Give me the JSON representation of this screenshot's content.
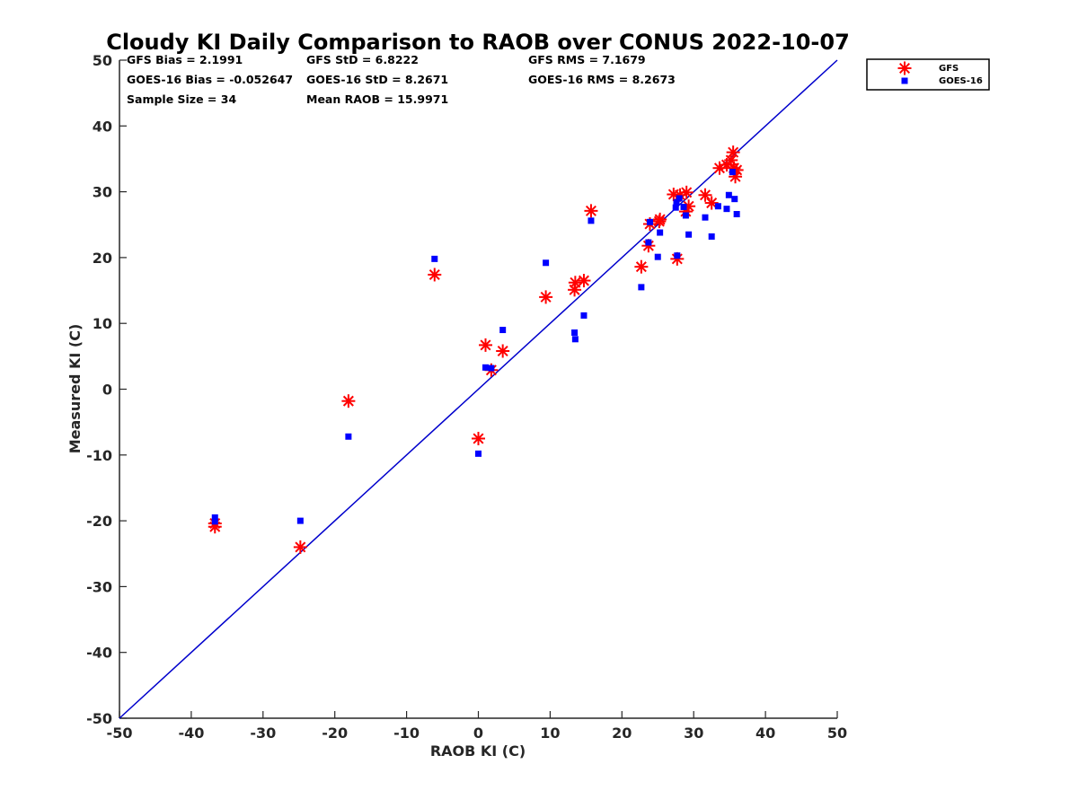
{
  "chart_data": {
    "type": "scatter",
    "title": "Cloudy KI Daily Comparison to RAOB over CONUS 2022-10-07",
    "xlabel": "RAOB KI (C)",
    "ylabel": "Measured KI (C)",
    "xlim": [
      -50,
      50
    ],
    "ylim": [
      -50,
      50
    ],
    "xticks": [
      -50,
      -40,
      -30,
      -20,
      -10,
      0,
      10,
      20,
      30,
      40,
      50
    ],
    "yticks": [
      -50,
      -40,
      -30,
      -20,
      -10,
      0,
      10,
      20,
      30,
      40,
      50
    ],
    "xtick_labels": [
      "-50",
      "-40",
      "-30",
      "-20",
      "-10",
      "0",
      "10",
      "20",
      "30",
      "40",
      "50"
    ],
    "ytick_labels": [
      "-50",
      "-40",
      "-30",
      "-20",
      "-10",
      "0",
      "10",
      "20",
      "30",
      "40",
      "50"
    ],
    "grid": false,
    "legend_position": "outside-top-right",
    "reference_line": {
      "type": "one-to-one",
      "color": "#0000cc"
    },
    "stats": [
      "GFS Bias = 2.1991",
      "GFS StD = 6.8222",
      "GFS RMS = 7.1679",
      "GOES-16 Bias = -0.052647",
      "GOES-16 StD = 8.2671",
      "GOES-16 RMS = 8.2673",
      "Sample Size = 34",
      "Mean RAOB = 15.9971"
    ],
    "series": [
      {
        "name": "GFS",
        "marker": "asterisk",
        "color": "#ff0000",
        "points": [
          [
            -36.7,
            -20.4
          ],
          [
            -36.7,
            -20.9
          ],
          [
            -24.8,
            -24.0
          ],
          [
            -18.1,
            -1.8
          ],
          [
            -6.1,
            17.4
          ],
          [
            0.0,
            -7.5
          ],
          [
            1.0,
            6.7
          ],
          [
            1.8,
            2.9
          ],
          [
            3.4,
            5.8
          ],
          [
            9.4,
            14.0
          ],
          [
            13.4,
            15.1
          ],
          [
            13.5,
            16.2
          ],
          [
            14.7,
            16.5
          ],
          [
            15.7,
            27.1
          ],
          [
            22.7,
            18.6
          ],
          [
            23.7,
            21.8
          ],
          [
            23.9,
            25.1
          ],
          [
            25.3,
            25.8
          ],
          [
            25.2,
            25.5
          ],
          [
            27.2,
            29.6
          ],
          [
            27.7,
            19.8
          ],
          [
            28.1,
            29.5
          ],
          [
            29.0,
            29.9
          ],
          [
            28.9,
            27.0
          ],
          [
            29.3,
            27.8
          ],
          [
            31.6,
            29.5
          ],
          [
            32.5,
            28.3
          ],
          [
            33.6,
            33.6
          ],
          [
            34.6,
            34.1
          ],
          [
            35.2,
            34.8
          ],
          [
            35.5,
            36.0
          ],
          [
            35.8,
            32.3
          ],
          [
            36.0,
            33.3
          ],
          [
            35.6,
            33.6
          ]
        ]
      },
      {
        "name": "GOES-16",
        "marker": "square",
        "color": "#0000ff",
        "points": [
          [
            -36.7,
            -19.5
          ],
          [
            -36.7,
            -20.1
          ],
          [
            -24.8,
            -20.0
          ],
          [
            -18.1,
            -7.2
          ],
          [
            -6.1,
            19.8
          ],
          [
            0.0,
            -9.8
          ],
          [
            1.0,
            3.3
          ],
          [
            1.8,
            3.2
          ],
          [
            3.4,
            9.0
          ],
          [
            9.4,
            19.2
          ],
          [
            13.4,
            8.6
          ],
          [
            13.5,
            7.6
          ],
          [
            14.7,
            11.2
          ],
          [
            15.7,
            25.6
          ],
          [
            22.7,
            15.5
          ],
          [
            23.7,
            22.3
          ],
          [
            23.9,
            25.4
          ],
          [
            25.3,
            23.8
          ],
          [
            25.0,
            20.1
          ],
          [
            27.5,
            27.6
          ],
          [
            27.7,
            20.3
          ],
          [
            27.6,
            28.4
          ],
          [
            28.0,
            29.0
          ],
          [
            28.6,
            27.7
          ],
          [
            28.9,
            26.4
          ],
          [
            29.3,
            23.5
          ],
          [
            31.6,
            26.1
          ],
          [
            32.5,
            23.2
          ],
          [
            33.4,
            27.8
          ],
          [
            34.6,
            27.4
          ],
          [
            34.9,
            29.5
          ],
          [
            35.4,
            33.0
          ],
          [
            35.7,
            28.9
          ],
          [
            36.0,
            26.6
          ]
        ]
      }
    ]
  }
}
